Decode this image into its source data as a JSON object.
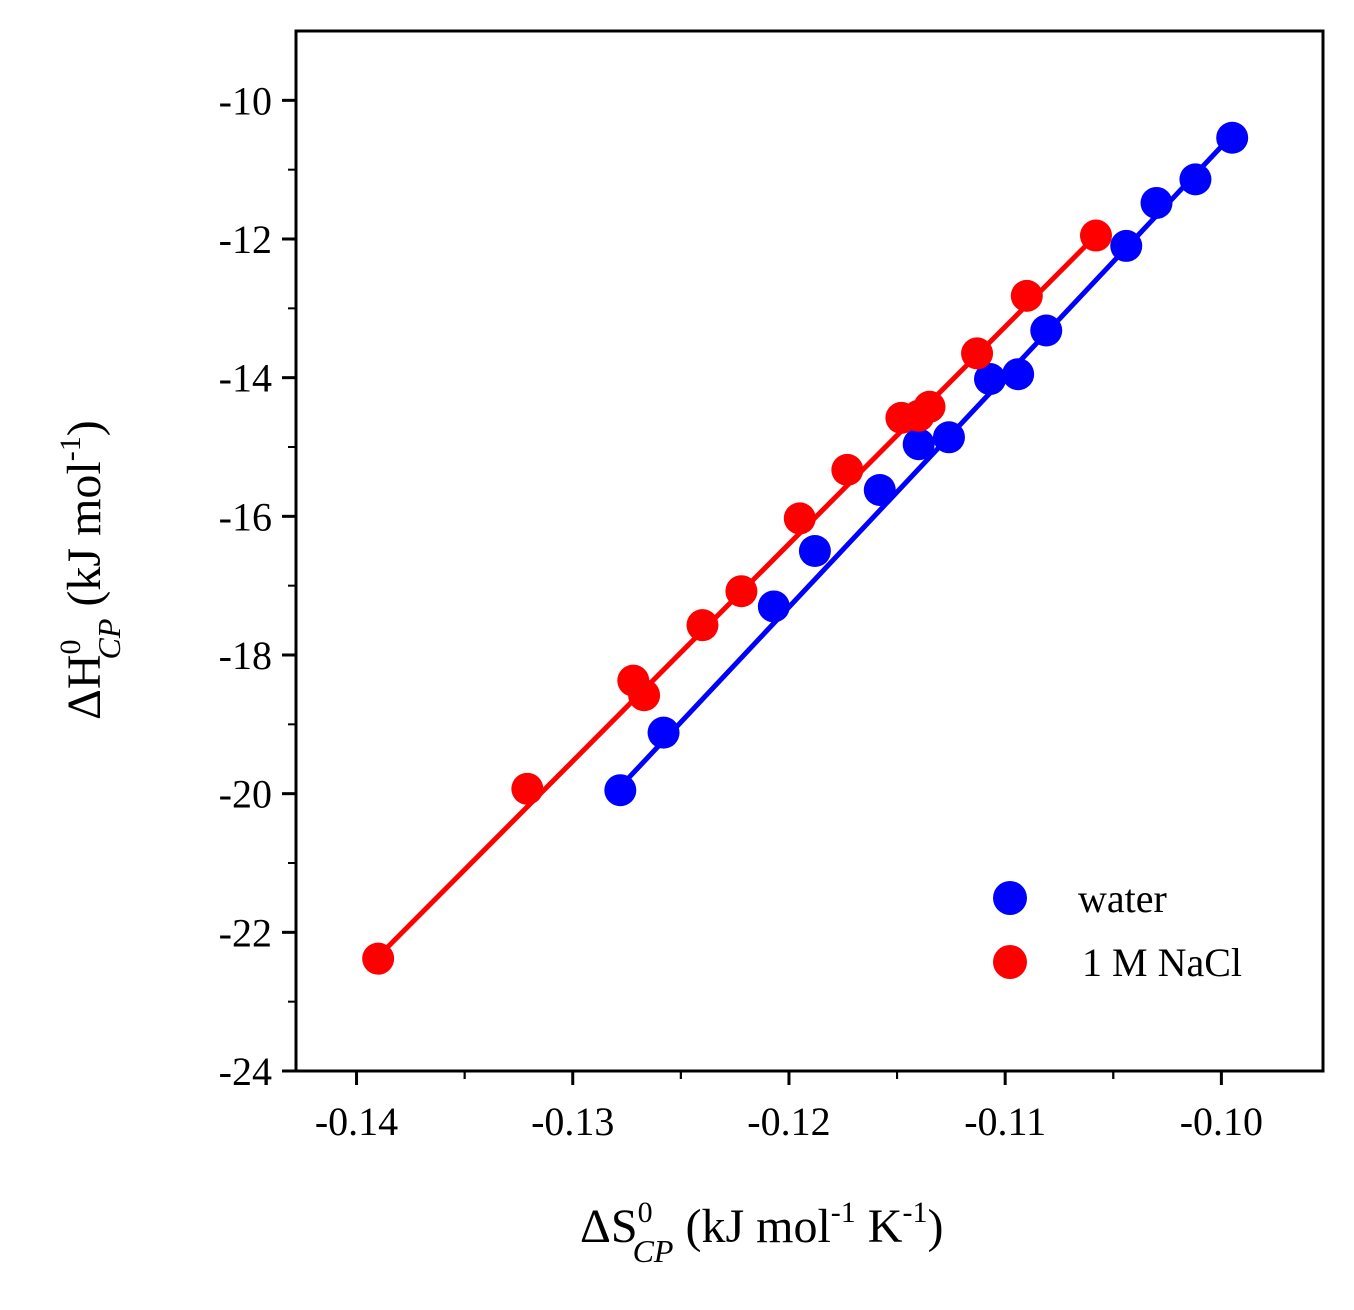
{
  "chart_data": {
    "type": "scatter",
    "xlabel": {
      "prefix": "ΔS",
      "sup": "0",
      "sub": "CP",
      "unit": " (kJ mol",
      "unit_sup1": "-1",
      "unit_mid": " K",
      "unit_sup2": "-1",
      "unit_end": ")"
    },
    "ylabel": {
      "prefix": "ΔH",
      "sup": "0",
      "sub": "CP",
      "unit": " (kJ mol",
      "unit_sup": "-1",
      "unit_end": ")"
    },
    "xlim": [
      -0.1428,
      -0.0953
    ],
    "ylim": [
      -24,
      -9
    ],
    "xticks": [
      -0.14,
      -0.13,
      -0.12,
      -0.11,
      -0.1
    ],
    "xtick_labels": [
      "-0.14",
      "-0.13",
      "-0.12",
      "-0.11",
      "-0.10"
    ],
    "yticks": [
      -24,
      -22,
      -20,
      -18,
      -16,
      -14,
      -12,
      -10
    ],
    "ytick_labels": [
      "-24",
      "-22",
      "-20",
      "-18",
      "-16",
      "-14",
      "-12",
      "-10"
    ],
    "grid": false,
    "legend_position": "bottom-right",
    "series": [
      {
        "name": "water",
        "color": "#0000ff",
        "x": [
          -0.1278,
          -0.1258,
          -0.1207,
          -0.1188,
          -0.1158,
          -0.114,
          -0.1126,
          -0.1107,
          -0.1094,
          -0.1081,
          -0.1044,
          -0.103,
          -0.1012,
          -0.0995
        ],
        "y": [
          -19.95,
          -19.12,
          -17.3,
          -16.5,
          -15.62,
          -14.96,
          -14.86,
          -14.02,
          -13.95,
          -13.32,
          -12.1,
          -11.48,
          -11.14,
          -10.54
        ],
        "fit": {
          "x": [
            -0.1278,
            -0.0995
          ],
          "y": [
            -19.9,
            -10.5
          ]
        }
      },
      {
        "name": "1 M NaCl",
        "color": "#ff0000",
        "x": [
          -0.139,
          -0.1321,
          -0.1272,
          -0.1267,
          -0.124,
          -0.1222,
          -0.1195,
          -0.1173,
          -0.1148,
          -0.114,
          -0.1135,
          -0.1113,
          -0.109,
          -0.1058
        ],
        "y": [
          -22.38,
          -19.93,
          -18.37,
          -18.58,
          -17.57,
          -17.08,
          -16.03,
          -15.33,
          -14.58,
          -14.55,
          -14.42,
          -13.65,
          -12.82,
          -11.95
        ],
        "fit": {
          "x": [
            -0.139,
            -0.1058
          ],
          "y": [
            -22.35,
            -11.95
          ]
        }
      }
    ]
  }
}
